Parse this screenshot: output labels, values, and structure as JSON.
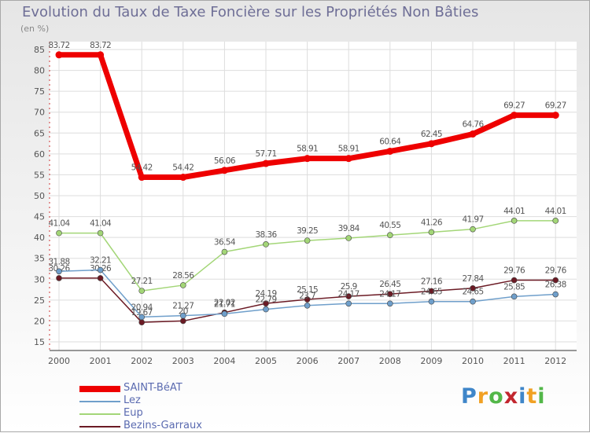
{
  "chart_data": {
    "type": "line",
    "title": "Evolution du Taux de Taxe Foncière sur les Propriétés Non Bâties",
    "ylabel": "(en %)",
    "xlabel": "",
    "ylim": [
      15,
      85
    ],
    "yticks": [
      15,
      20,
      25,
      30,
      35,
      40,
      45,
      50,
      55,
      60,
      65,
      70,
      75,
      80,
      85
    ],
    "categories": [
      "2000",
      "2001",
      "2002",
      "2003",
      "2004",
      "2005",
      "2006",
      "2007",
      "2008",
      "2009",
      "2010",
      "2011",
      "2012"
    ],
    "grid": true,
    "legend_position": "bottom-left",
    "series": [
      {
        "name": "Bezins-Garraux",
        "color": "#6b1a24",
        "values": [
          30.26,
          30.26,
          19.67,
          20,
          22.02,
          24.19,
          25.15,
          25.9,
          26.45,
          27.16,
          27.84,
          29.76,
          29.76
        ],
        "labels": [
          "30.26",
          "30.26",
          "19.67",
          "20",
          "22.02",
          "24.19",
          "25.15",
          "25.9",
          "26.45",
          "27.16",
          "27.84",
          "29.76",
          "29.76"
        ]
      },
      {
        "name": "Lez",
        "color": "#6f9fcb",
        "values": [
          31.88,
          32.21,
          20.94,
          21.27,
          21.71,
          22.79,
          23.7,
          24.17,
          24.17,
          24.65,
          24.65,
          25.85,
          26.38
        ],
        "labels": [
          "31.88",
          "32.21",
          "20.94",
          "21.27",
          "21.71",
          "22.79",
          "23.7",
          "24.17",
          "24.17",
          "24.65",
          "24.65",
          "25.85",
          "26.38"
        ]
      },
      {
        "name": "Eup",
        "color": "#a3d677",
        "values": [
          41.04,
          41.04,
          27.21,
          28.56,
          36.54,
          38.36,
          39.25,
          39.84,
          40.55,
          41.26,
          41.97,
          44.01,
          44.01
        ],
        "labels": [
          "41.04",
          "41.04",
          "27.21",
          "28.56",
          "36.54",
          "38.36",
          "39.25",
          "39.84",
          "40.55",
          "41.26",
          "41.97",
          "44.01",
          "44.01"
        ]
      },
      {
        "name": "SAINT-BéAT",
        "color": "#ee0000",
        "values": [
          83.72,
          83.72,
          54.42,
          54.42,
          56.06,
          57.71,
          58.91,
          58.91,
          60.64,
          62.45,
          64.76,
          69.27,
          69.27
        ],
        "labels": [
          "83.72",
          "83.72",
          "54.42",
          "54.42",
          "56.06",
          "57.71",
          "58.91",
          "58.91",
          "60.64",
          "62.45",
          "64.76",
          "69.27",
          "69.27"
        ]
      }
    ],
    "legend_order": [
      "SAINT-BéAT",
      "Lez",
      "Eup",
      "Bezins-Garraux"
    ]
  },
  "branding": {
    "logo_letters": [
      "P",
      "r",
      "o",
      "x",
      "i",
      "t",
      "i"
    ],
    "logo_colors": [
      "#3f86c9",
      "#f1a124",
      "#53b749",
      "#c2262e",
      "#3f86c9",
      "#f1a124",
      "#53b749"
    ]
  }
}
